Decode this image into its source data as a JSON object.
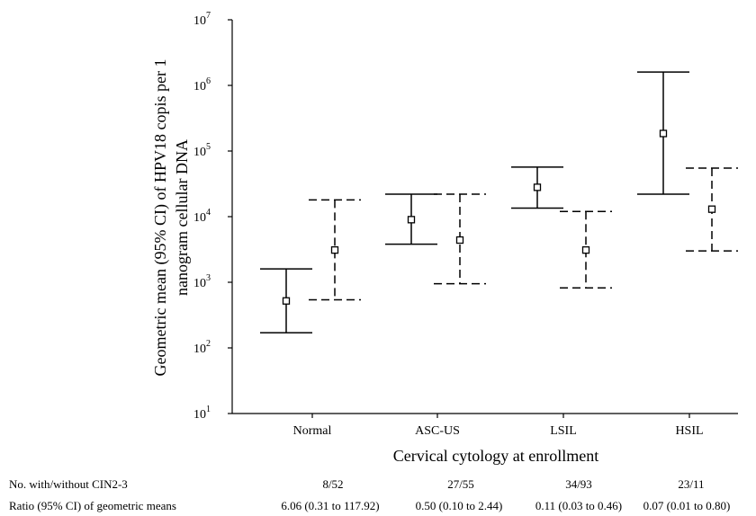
{
  "chart_data": {
    "type": "errorbar",
    "title": "",
    "xlabel": "Cervical cytology at enrollment",
    "ylabel_lines": [
      "Geometric mean (95% CI) of HPV18 copis per 1",
      "nanogram cellular DNA"
    ],
    "y_scale": "log",
    "ylim": [
      10,
      10000000
    ],
    "y_ticks": [
      {
        "value": 10,
        "base": "10",
        "exp": "1"
      },
      {
        "value": 100,
        "base": "10",
        "exp": "2"
      },
      {
        "value": 1000,
        "base": "10",
        "exp": "3"
      },
      {
        "value": 10000,
        "base": "10",
        "exp": "4"
      },
      {
        "value": 100000,
        "base": "10",
        "exp": "5"
      },
      {
        "value": 1000000,
        "base": "10",
        "exp": "6"
      },
      {
        "value": 10000000,
        "base": "10",
        "exp": "7"
      }
    ],
    "categories": [
      "Normal",
      "ASC-US",
      "LSIL",
      "HSIL"
    ],
    "series": [
      {
        "style": "solid",
        "points": [
          {
            "mean": 520,
            "lower": 170,
            "upper": 1600
          },
          {
            "mean": 9000,
            "lower": 3800,
            "upper": 22000
          },
          {
            "mean": 28000,
            "lower": 13500,
            "upper": 57000
          },
          {
            "mean": 185000,
            "lower": 22000,
            "upper": 1600000
          }
        ]
      },
      {
        "style": "dashed",
        "points": [
          {
            "mean": 3100,
            "lower": 540,
            "upper": 18000
          },
          {
            "mean": 4400,
            "lower": 950,
            "upper": 22000
          },
          {
            "mean": 3100,
            "lower": 820,
            "upper": 12000
          },
          {
            "mean": 13000,
            "lower": 3000,
            "upper": 55000
          }
        ]
      }
    ]
  },
  "footer": {
    "row1_label": "No. with/without CIN2-3",
    "row1_values": [
      "8/52",
      "27/55",
      "34/93",
      "23/11"
    ],
    "row2_label": "Ratio (95% CI) of geometric means",
    "row2_values": [
      "6.06 (0.31 to 117.92)",
      "0.50 (0.10 to 2.44)",
      "0.11 (0.03 to 0.46)",
      "0.07 (0.01 to 0.80)"
    ]
  }
}
